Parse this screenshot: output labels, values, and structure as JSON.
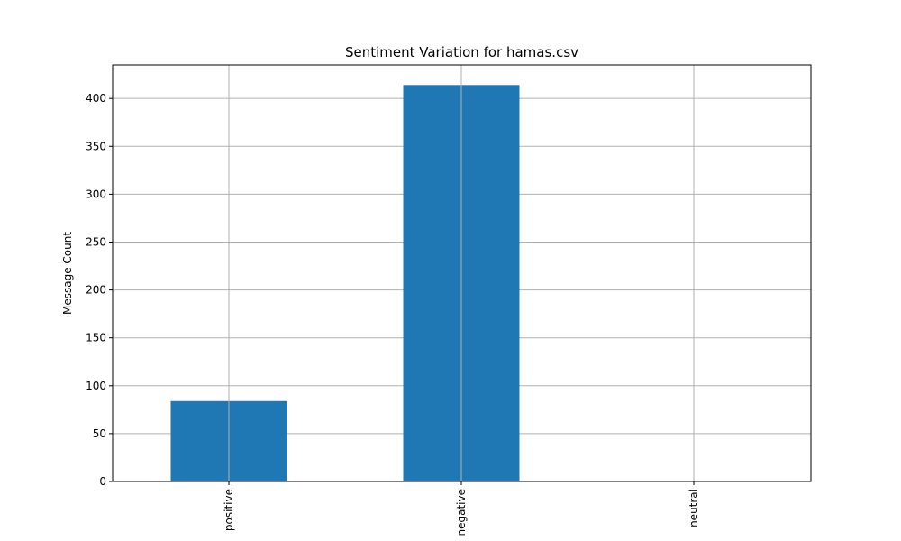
{
  "chart_data": {
    "type": "bar",
    "title": "Sentiment Variation for hamas.csv",
    "xlabel": "",
    "ylabel": "Message Count",
    "categories": [
      "positive",
      "negative",
      "neutral"
    ],
    "values": [
      84,
      414,
      0
    ],
    "ylim": [
      0,
      435
    ],
    "yticks": [
      0,
      50,
      100,
      150,
      200,
      250,
      300,
      350,
      400
    ],
    "grid": true,
    "bar_color": "#1f77b4",
    "xtick_rotation": "vertical"
  }
}
